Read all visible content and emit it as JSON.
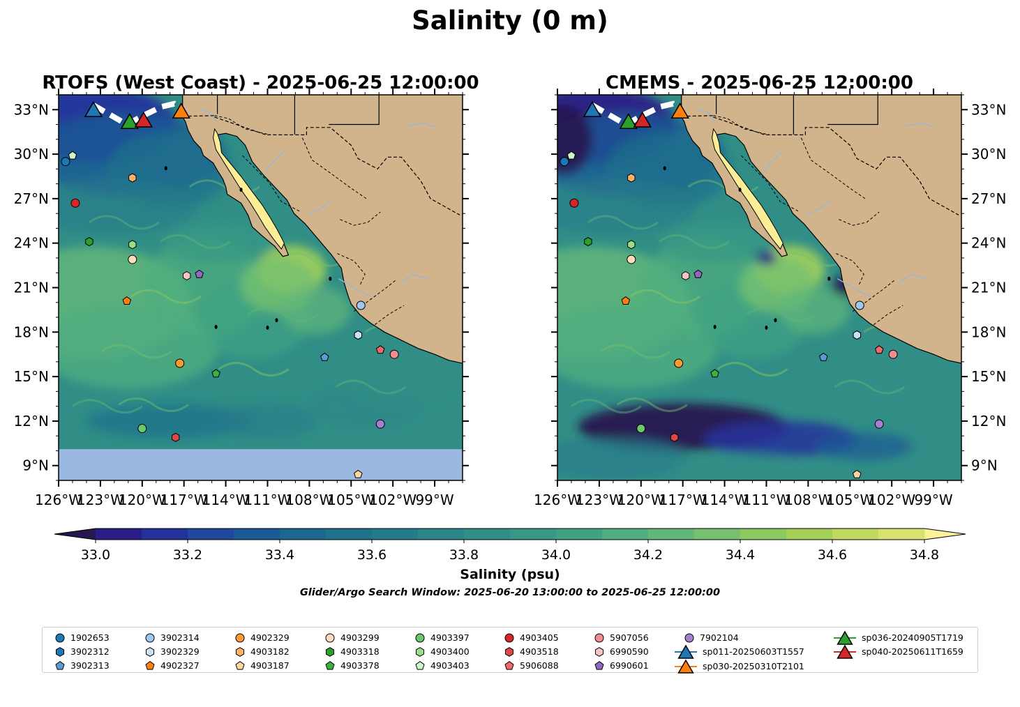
{
  "figure_title": "Salinity (0 m)",
  "panels": [
    {
      "title": "RTOFS (West Coast) - 2025-06-25 12:00:00",
      "lon_ticks": [
        "126°W",
        "123°W",
        "120°W",
        "117°W",
        "114°W",
        "111°W",
        "108°W",
        "105°W",
        "102°W",
        "99°W"
      ],
      "lat_ticks": [
        "33°N",
        "30°N",
        "27°N",
        "24°N",
        "21°N",
        "18°N",
        "15°N",
        "12°N",
        "9°N"
      ],
      "lat_label_side": "left",
      "extent": {
        "lon": [
          -126,
          -97
        ],
        "lat": [
          8,
          34
        ]
      },
      "data_lat_min": 10.1
    },
    {
      "title": "CMEMS - 2025-06-25 12:00:00",
      "lon_ticks": [
        "126°W",
        "123°W",
        "120°W",
        "117°W",
        "114°W",
        "111°W",
        "108°W",
        "105°W",
        "102°W",
        "99°W"
      ],
      "lat_ticks": [
        "33°N",
        "30°N",
        "27°N",
        "24°N",
        "21°N",
        "18°N",
        "15°N",
        "12°N",
        "9°N"
      ],
      "lat_label_side": "right",
      "extent": {
        "lon": [
          -126,
          -97
        ],
        "lat": [
          8,
          34
        ]
      },
      "data_lat_min": 8
    }
  ],
  "colorbar": {
    "label": "Salinity (psu)",
    "ticks": [
      "33.0",
      "33.2",
      "33.4",
      "33.6",
      "33.8",
      "34.0",
      "34.2",
      "34.4",
      "34.6",
      "34.8"
    ],
    "range": [
      32.9,
      34.9
    ],
    "extend": "both",
    "colors": [
      "#26184f",
      "#2a1d87",
      "#24319b",
      "#1f489c",
      "#1c5a96",
      "#1b6790",
      "#1f718c",
      "#267b8a",
      "#2c8588",
      "#318e86",
      "#379885",
      "#40a283",
      "#4fad7f",
      "#61b67a",
      "#76c06f",
      "#8dc961",
      "#a4d159",
      "#bfda5e",
      "#d8e270",
      "#fcf29a"
    ]
  },
  "search_window": "Glider/Argo Search Window: 2025-06-20 13:00:00 to 2025-06-25 12:00:00",
  "colors": {
    "land": "#d2b48c",
    "nodata": "#9ab8e0",
    "river": "#9bb5d2",
    "frame": "#000000"
  },
  "legend": [
    {
      "label": "1902653",
      "shape": "circle",
      "color": "#1f77b4"
    },
    {
      "label": "3902312",
      "shape": "hexagon",
      "color": "#1f77b4"
    },
    {
      "label": "3902313",
      "shape": "pentagon",
      "color": "#5b9bd5"
    },
    {
      "label": "3902314",
      "shape": "circle",
      "color": "#9ec9ee"
    },
    {
      "label": "3902329",
      "shape": "hexagon",
      "color": "#c9e2f6"
    },
    {
      "label": "4902327",
      "shape": "pentagon",
      "color": "#ff7f0e"
    },
    {
      "label": "4902329",
      "shape": "circle",
      "color": "#ff9a33"
    },
    {
      "label": "4903182",
      "shape": "hexagon",
      "color": "#ffb266"
    },
    {
      "label": "4903187",
      "shape": "pentagon",
      "color": "#ffd6a3"
    },
    {
      "label": "4903299",
      "shape": "circle",
      "color": "#ffdcc0"
    },
    {
      "label": "4903318",
      "shape": "hexagon",
      "color": "#2ca02c"
    },
    {
      "label": "4903378",
      "shape": "pentagon",
      "color": "#3cb043"
    },
    {
      "label": "4903397",
      "shape": "circle",
      "color": "#69c86a"
    },
    {
      "label": "4903400",
      "shape": "hexagon",
      "color": "#98df8a"
    },
    {
      "label": "4903403",
      "shape": "pentagon",
      "color": "#ccf7c8"
    },
    {
      "label": "4903405",
      "shape": "circle",
      "color": "#d62728"
    },
    {
      "label": "4903518",
      "shape": "hexagon",
      "color": "#e04646"
    },
    {
      "label": "5906088",
      "shape": "pentagon",
      "color": "#f06a6a"
    },
    {
      "label": "5907056",
      "shape": "circle",
      "color": "#f28e8e"
    },
    {
      "label": "6990590",
      "shape": "hexagon",
      "color": "#f7c4c4"
    },
    {
      "label": "6990601",
      "shape": "pentagon",
      "color": "#9467bd"
    },
    {
      "label": "7902104",
      "shape": "circle",
      "color": "#a77fd0"
    },
    {
      "label": "sp011-20250603T1557",
      "shape": "triangle",
      "color": "#1f77b4"
    },
    {
      "label": "sp030-20250310T2101",
      "shape": "triangle",
      "color": "#ff7f0e"
    },
    {
      "label": "sp036-20240905T1719",
      "shape": "triangle",
      "color": "#2ca02c"
    },
    {
      "label": "sp040-20250611T1659",
      "shape": "triangle",
      "color": "#d62728"
    }
  ],
  "argo_floats": [
    {
      "id": "1902653",
      "lon": -125.5,
      "lat": 29.5
    },
    {
      "id": "3902312",
      "lon": -104.5,
      "lat": 17.8
    },
    {
      "id": "3902313",
      "lon": -106.9,
      "lat": 16.3
    },
    {
      "id": "3902314",
      "lon": -104.3,
      "lat": 19.8
    },
    {
      "id": "3902329",
      "lon": -104.5,
      "lat": 17.8
    },
    {
      "id": "4902327",
      "lon": -121.1,
      "lat": 20.1
    },
    {
      "id": "4902329",
      "lon": -117.3,
      "lat": 15.9
    },
    {
      "id": "4903182",
      "lon": -120.7,
      "lat": 28.4
    },
    {
      "id": "4903187",
      "lon": -104.5,
      "lat": 8.4
    },
    {
      "id": "4903299",
      "lon": -120.7,
      "lat": 22.9
    },
    {
      "id": "4903318",
      "lon": -123.8,
      "lat": 24.1
    },
    {
      "id": "4903378",
      "lon": -114.7,
      "lat": 15.2
    },
    {
      "id": "4903397",
      "lon": -120.0,
      "lat": 11.5
    },
    {
      "id": "4903400",
      "lon": -120.7,
      "lat": 23.9
    },
    {
      "id": "4903403",
      "lon": -125.0,
      "lat": 29.9
    },
    {
      "id": "4903405",
      "lon": -124.8,
      "lat": 26.7
    },
    {
      "id": "4903518",
      "lon": -117.6,
      "lat": 10.9
    },
    {
      "id": "5906088",
      "lon": -102.9,
      "lat": 16.8
    },
    {
      "id": "5907056",
      "lon": -101.9,
      "lat": 16.5
    },
    {
      "id": "6990590",
      "lon": -116.8,
      "lat": 21.8
    },
    {
      "id": "6990601",
      "lon": -115.9,
      "lat": 21.9
    },
    {
      "id": "7902104",
      "lon": -102.9,
      "lat": 11.8
    }
  ],
  "gliders": [
    {
      "id": "sp011-20250603T1557",
      "lon": -123.5,
      "lat": 33.0
    },
    {
      "id": "sp036-20240905T1719",
      "lon": -120.9,
      "lat": 32.2
    },
    {
      "id": "sp040-20250611T1659",
      "lon": -119.9,
      "lat": 32.3
    },
    {
      "id": "sp030-20250310T2101",
      "lon": -117.2,
      "lat": 32.9
    }
  ]
}
